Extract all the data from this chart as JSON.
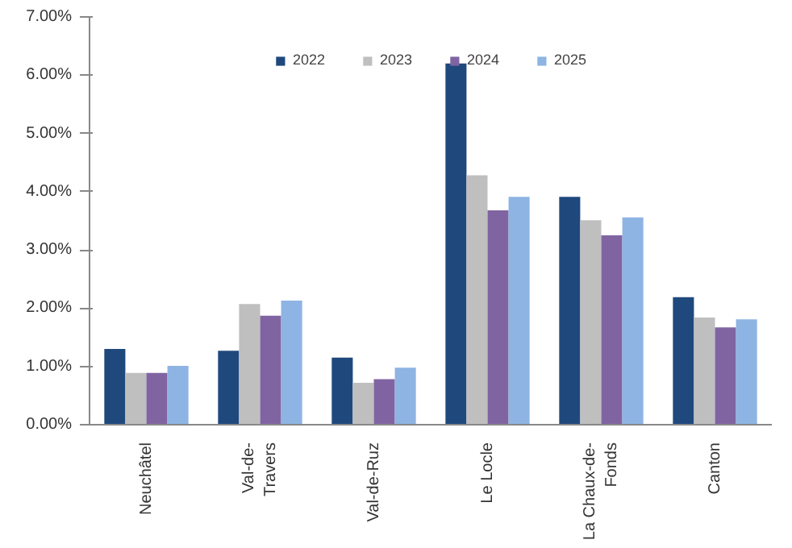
{
  "chart_data": {
    "type": "bar",
    "categories": [
      "Neuchâtel",
      "Val-de-Travers",
      "Val-de-Ruz",
      "Le Locle",
      "La Chaux-de-Fonds",
      "Canton"
    ],
    "series": [
      {
        "name": "2022",
        "color": "#1f497d",
        "values": [
          1.3,
          1.27,
          1.15,
          6.2,
          3.91,
          2.19
        ]
      },
      {
        "name": "2023",
        "color": "#bfbfbf",
        "values": [
          0.89,
          2.07,
          0.72,
          4.28,
          3.51,
          1.84
        ]
      },
      {
        "name": "2024",
        "color": "#8064a2",
        "values": [
          0.89,
          1.87,
          0.78,
          3.68,
          3.25,
          1.67
        ]
      },
      {
        "name": "2025",
        "color": "#8eb4e3",
        "values": [
          1.01,
          2.13,
          0.98,
          3.91,
          3.56,
          1.81
        ]
      }
    ],
    "ylim": [
      0,
      7
    ],
    "yticks": [
      {
        "value": 0,
        "label": "0.00%"
      },
      {
        "value": 1,
        "label": "1.00%"
      },
      {
        "value": 2,
        "label": "2.00%"
      },
      {
        "value": 3,
        "label": "3.00%"
      },
      {
        "value": 4,
        "label": "4.00%"
      },
      {
        "value": 5,
        "label": "5.00%"
      },
      {
        "value": 6,
        "label": "6.00%"
      },
      {
        "value": 7,
        "label": "7.00%"
      }
    ],
    "legend": "top",
    "grid": false
  }
}
